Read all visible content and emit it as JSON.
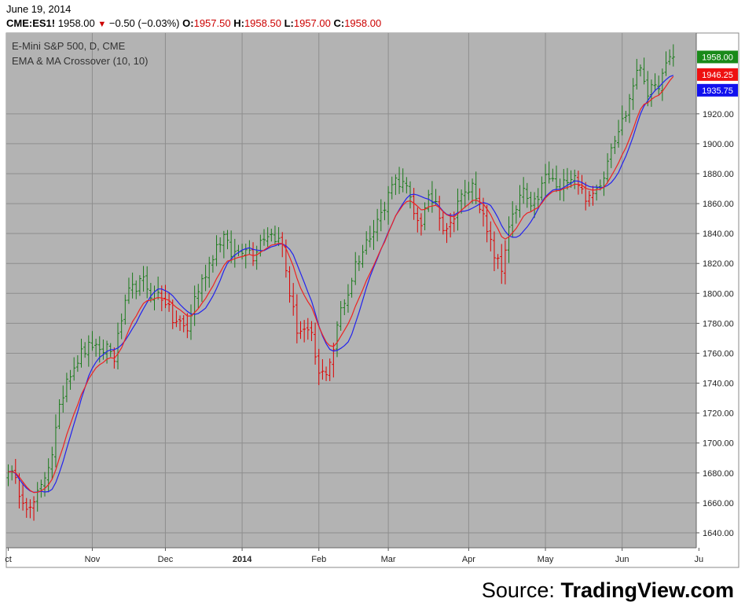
{
  "header": {
    "date": "June 19, 2014",
    "symbol": "CME:ES1!",
    "last": "1958.00",
    "change": "−0.50 (−0.03%)",
    "o_label": "O:",
    "o": "1957.50",
    "h_label": "H:",
    "h": "1958.50",
    "l_label": "L:",
    "l": "1957.00",
    "c_label": "C:",
    "c": "1958.00"
  },
  "chart_data": {
    "type": "bar",
    "title": "E-Mini S&P 500, D, CME",
    "subtitle": "EMA & MA Crossover (10, 10)",
    "y_ticks": [
      1640,
      1660,
      1680,
      1700,
      1720,
      1740,
      1760,
      1780,
      1800,
      1820,
      1840,
      1860,
      1880,
      1900,
      1920
    ],
    "ylim": [
      1630,
      1974
    ],
    "x_ticks": [
      {
        "label": "ct",
        "day": 0
      },
      {
        "label": "Nov",
        "day": 23
      },
      {
        "label": "Dec",
        "day": 43
      },
      {
        "label": "2014",
        "day": 64
      },
      {
        "label": "Feb",
        "day": 85
      },
      {
        "label": "Mar",
        "day": 104
      },
      {
        "label": "Apr",
        "day": 126
      },
      {
        "label": "May",
        "day": 147
      },
      {
        "label": "Jun",
        "day": 168
      },
      {
        "label": "Ju",
        "day": 189
      }
    ],
    "price_labels": [
      {
        "name": "last",
        "value": 1958.0,
        "text": "1958.00",
        "color": "#1a8a1a"
      },
      {
        "name": "ema",
        "value": 1946.25,
        "text": "1946.25",
        "color": "#ee1111"
      },
      {
        "name": "ma",
        "value": 1935.75,
        "text": "1935.75",
        "color": "#1111ee"
      }
    ],
    "bullish_color": "#1a7a1a",
    "bearish_color": "#dd0000",
    "ema_color": "#ee2222",
    "ma_color": "#2222ee",
    "grid": true,
    "anchors": [
      [
        0,
        1684
      ],
      [
        3,
        1668
      ],
      [
        6,
        1655
      ],
      [
        9,
        1670
      ],
      [
        12,
        1694
      ],
      [
        14,
        1722
      ],
      [
        16,
        1744
      ],
      [
        18,
        1752
      ],
      [
        20,
        1760
      ],
      [
        23,
        1766
      ],
      [
        25,
        1759
      ],
      [
        27,
        1765
      ],
      [
        29,
        1757
      ],
      [
        31,
        1783
      ],
      [
        33,
        1800
      ],
      [
        35,
        1805
      ],
      [
        37,
        1808
      ],
      [
        39,
        1800
      ],
      [
        41,
        1800
      ],
      [
        43,
        1795
      ],
      [
        45,
        1782
      ],
      [
        47,
        1780
      ],
      [
        49,
        1775
      ],
      [
        51,
        1797
      ],
      [
        53,
        1808
      ],
      [
        55,
        1820
      ],
      [
        57,
        1832
      ],
      [
        59,
        1838
      ],
      [
        61,
        1826
      ],
      [
        63,
        1828
      ],
      [
        65,
        1832
      ],
      [
        67,
        1825
      ],
      [
        69,
        1836
      ],
      [
        71,
        1840
      ],
      [
        73,
        1838
      ],
      [
        75,
        1832
      ],
      [
        77,
        1800
      ],
      [
        79,
        1776
      ],
      [
        81,
        1775
      ],
      [
        83,
        1770
      ],
      [
        85,
        1745
      ],
      [
        87,
        1748
      ],
      [
        89,
        1763
      ],
      [
        91,
        1790
      ],
      [
        93,
        1800
      ],
      [
        95,
        1820
      ],
      [
        97,
        1828
      ],
      [
        99,
        1840
      ],
      [
        101,
        1850
      ],
      [
        103,
        1856
      ],
      [
        105,
        1876
      ],
      [
        107,
        1875
      ],
      [
        109,
        1870
      ],
      [
        111,
        1852
      ],
      [
        113,
        1848
      ],
      [
        115,
        1862
      ],
      [
        117,
        1862
      ],
      [
        119,
        1845
      ],
      [
        121,
        1845
      ],
      [
        123,
        1862
      ],
      [
        125,
        1866
      ],
      [
        127,
        1872
      ],
      [
        129,
        1860
      ],
      [
        131,
        1840
      ],
      [
        133,
        1826
      ],
      [
        135,
        1815
      ],
      [
        137,
        1846
      ],
      [
        139,
        1855
      ],
      [
        141,
        1870
      ],
      [
        143,
        1855
      ],
      [
        145,
        1865
      ],
      [
        147,
        1878
      ],
      [
        149,
        1875
      ],
      [
        151,
        1868
      ],
      [
        153,
        1878
      ],
      [
        155,
        1880
      ],
      [
        157,
        1868
      ],
      [
        159,
        1862
      ],
      [
        161,
        1870
      ],
      [
        163,
        1880
      ],
      [
        165,
        1900
      ],
      [
        167,
        1910
      ],
      [
        169,
        1920
      ],
      [
        171,
        1940
      ],
      [
        173,
        1952
      ],
      [
        175,
        1935
      ],
      [
        177,
        1936
      ],
      [
        179,
        1945
      ],
      [
        181,
        1957
      ],
      [
        182,
        1958
      ]
    ]
  },
  "source": {
    "prefix": "Source: ",
    "brand": "TradingView.com"
  }
}
